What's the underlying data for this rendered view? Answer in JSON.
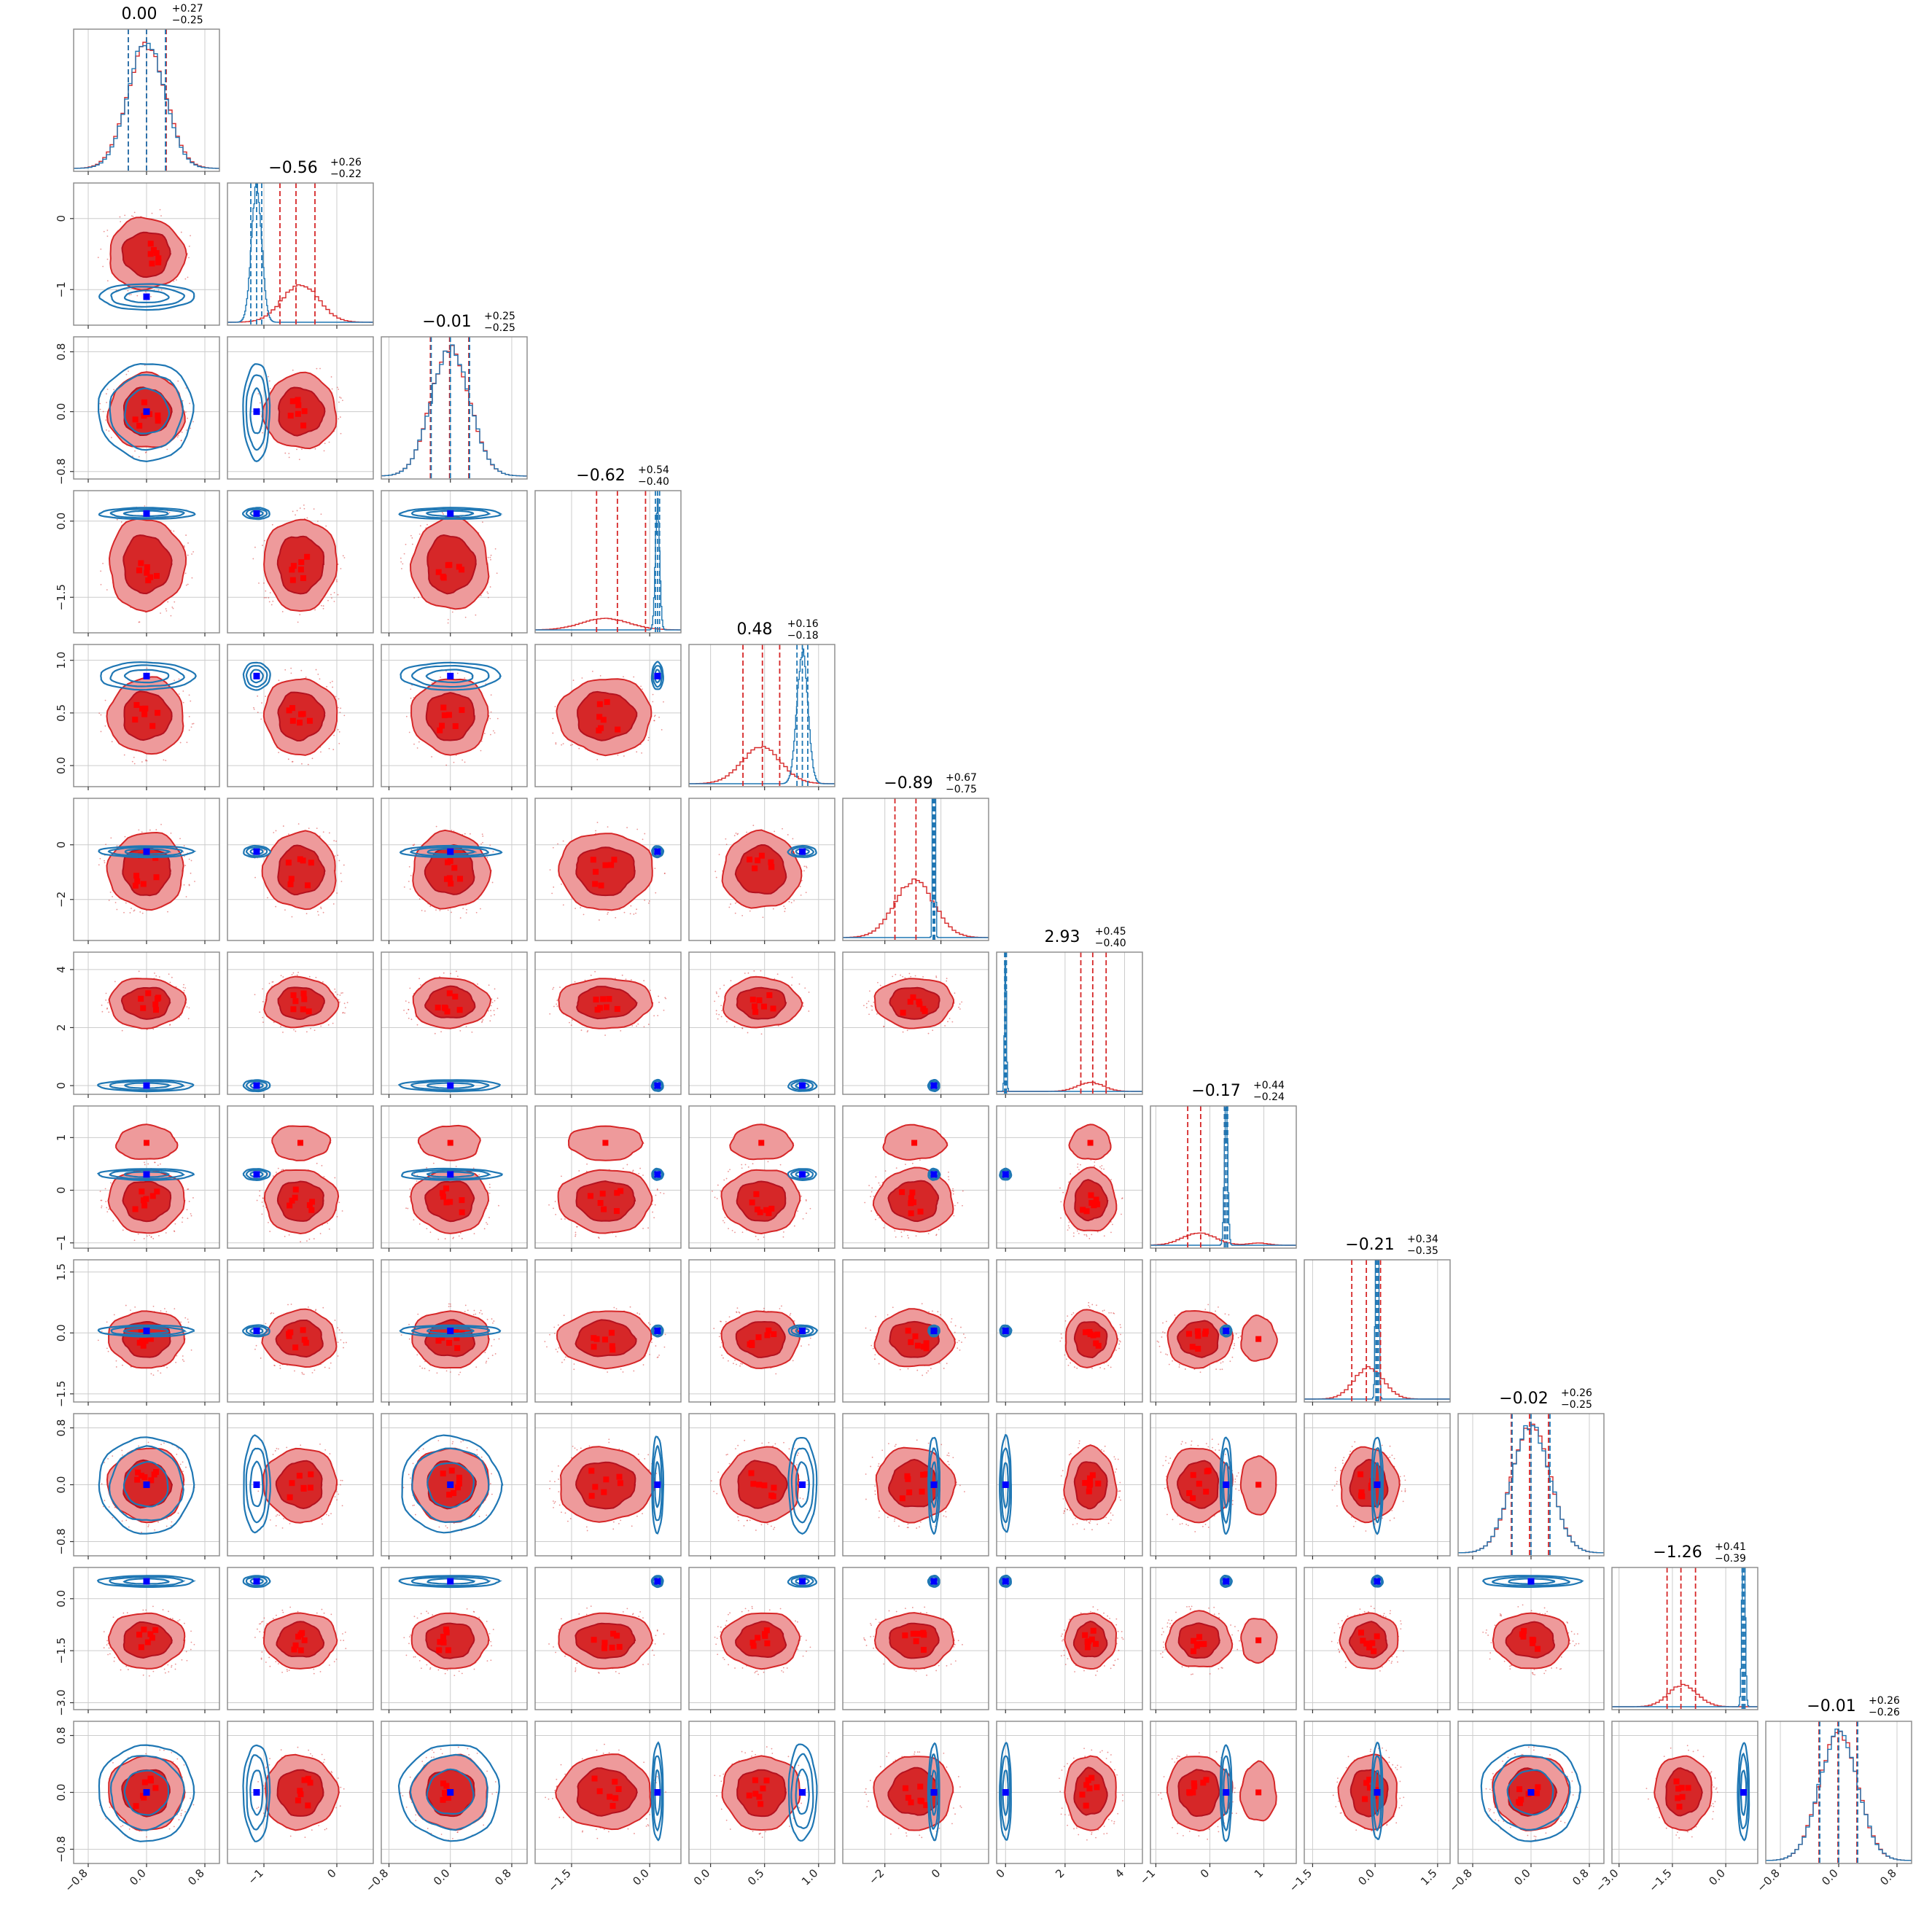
{
  "chart_data": {
    "type": "corner",
    "n_params": 12,
    "grid": true,
    "colors": {
      "red": "#d62728",
      "red_light": "#ee9a9b",
      "red_dark": "#b3121f",
      "blue": "#1f77b4",
      "blue_light": "#8dbbde",
      "marker_red": "#ff0000",
      "marker_blue": "#0000ff",
      "axis": "#888888",
      "grid": "#cccccc"
    },
    "series": [
      {
        "name": "",
        "color": "#d62728",
        "filled": true
      },
      {
        "name": "",
        "color": "#1f77b4",
        "filled": false
      }
    ],
    "titles": [
      {
        "median": "0.00",
        "plus": "+0.27",
        "minus": "−0.25"
      },
      {
        "median": "−0.56",
        "plus": "+0.26",
        "minus": "−0.22"
      },
      {
        "median": "−0.01",
        "plus": "+0.25",
        "minus": "−0.25"
      },
      {
        "median": "−0.62",
        "plus": "+0.54",
        "minus": "−0.40"
      },
      {
        "median": "0.48",
        "plus": "+0.16",
        "minus": "−0.18"
      },
      {
        "median": "−0.89",
        "plus": "+0.67",
        "minus": "−0.75"
      },
      {
        "median": "2.93",
        "plus": "+0.45",
        "minus": "−0.40"
      },
      {
        "median": "−0.17",
        "plus": "+0.44",
        "minus": "−0.24"
      },
      {
        "median": "−0.21",
        "plus": "+0.34",
        "minus": "−0.35"
      },
      {
        "median": "−0.02",
        "plus": "+0.26",
        "minus": "−0.25"
      },
      {
        "median": "−1.26",
        "plus": "+0.41",
        "minus": "−0.39"
      },
      {
        "median": "−0.01",
        "plus": "+0.26",
        "minus": "−0.26"
      }
    ],
    "axes": [
      {
        "lim": [
          -1.0,
          1.0
        ],
        "ticks": [
          -0.8,
          0.0,
          0.8
        ],
        "tick_labels": [
          "−0.8",
          "0.0",
          "0.8"
        ]
      },
      {
        "lim": [
          -1.5,
          0.5
        ],
        "ticks": [
          -1,
          0
        ],
        "tick_labels": [
          "−1",
          "0"
        ]
      },
      {
        "lim": [
          -0.9,
          1.0
        ],
        "ticks": [
          -0.8,
          0.0,
          0.8
        ],
        "tick_labels": [
          "−0.8",
          "0.0",
          "0.8"
        ]
      },
      {
        "lim": [
          -2.2,
          0.6
        ],
        "ticks": [
          -1.5,
          0.0
        ],
        "tick_labels": [
          "−1.5",
          "0.0"
        ]
      },
      {
        "lim": [
          -0.2,
          1.15
        ],
        "ticks": [
          0.0,
          0.5,
          1.0
        ],
        "tick_labels": [
          "0.0",
          "0.5",
          "1.0"
        ]
      },
      {
        "lim": [
          -3.5,
          1.7
        ],
        "ticks": [
          -2,
          0
        ],
        "tick_labels": [
          "−2",
          "0"
        ]
      },
      {
        "lim": [
          -0.3,
          4.6
        ],
        "ticks": [
          0,
          2,
          4
        ],
        "tick_labels": [
          "0",
          "2",
          "4"
        ]
      },
      {
        "lim": [
          -1.1,
          1.6
        ],
        "ticks": [
          -1,
          0,
          1
        ],
        "tick_labels": [
          "−1",
          "0",
          "1"
        ]
      },
      {
        "lim": [
          -1.7,
          1.8
        ],
        "ticks": [
          -1.5,
          0.0,
          1.5
        ],
        "tick_labels": [
          "−1.5",
          "0.0",
          "1.5"
        ]
      },
      {
        "lim": [
          -1.0,
          1.0
        ],
        "ticks": [
          -0.8,
          0.0,
          0.8
        ],
        "tick_labels": [
          "−0.8",
          "0.0",
          "0.8"
        ]
      },
      {
        "lim": [
          -3.2,
          0.9
        ],
        "ticks": [
          -3.0,
          -1.5,
          0.0
        ],
        "tick_labels": [
          "−3.0",
          "−1.5",
          "0.0"
        ]
      },
      {
        "lim": [
          -1.0,
          1.0
        ],
        "ticks": [
          -0.8,
          0.0,
          0.8
        ],
        "tick_labels": [
          "−0.8",
          "0.0",
          "0.8"
        ]
      }
    ],
    "red_posterior": {
      "center": [
        0.0,
        -0.5,
        0.0,
        -0.85,
        0.47,
        -0.95,
        2.85,
        -0.2,
        -0.15,
        0.0,
        -1.2,
        0.0
      ],
      "sigma": [
        0.26,
        0.25,
        0.25,
        0.45,
        0.18,
        0.7,
        0.43,
        0.3,
        0.35,
        0.26,
        0.4,
        0.26
      ],
      "secondary_mode": {
        "param": 7,
        "center": 0.9,
        "weight": 0.15
      }
    },
    "blue_posterior": {
      "center": [
        0.0,
        -1.1,
        0.0,
        0.15,
        0.85,
        -0.25,
        0.0,
        0.3,
        0.05,
        0.0,
        0.5,
        0.0
      ],
      "sigma": [
        0.25,
        0.07,
        0.25,
        0.04,
        0.05,
        0.03,
        0.03,
        0.03,
        0.03,
        0.26,
        0.04,
        0.26
      ]
    },
    "red_quantile_lines": [
      [
        -0.25,
        0.0,
        0.27
      ],
      [
        -0.78,
        -0.56,
        -0.3
      ],
      [
        -0.26,
        -0.01,
        0.24
      ],
      [
        -1.02,
        -0.62,
        -0.08
      ],
      [
        0.3,
        0.48,
        0.64
      ],
      [
        -1.64,
        -0.89,
        -0.22
      ],
      [
        2.53,
        2.93,
        3.38
      ],
      [
        -0.41,
        -0.17,
        0.27
      ],
      [
        -0.56,
        -0.21,
        0.13
      ],
      [
        -0.27,
        -0.02,
        0.24
      ],
      [
        -1.65,
        -1.26,
        -0.85
      ],
      [
        -0.27,
        -0.01,
        0.25
      ]
    ],
    "blue_quantile_lines": [
      [
        -0.25,
        0.0,
        0.26
      ],
      [
        -1.18,
        -1.1,
        -1.03
      ],
      [
        -0.25,
        0.0,
        0.25
      ],
      [
        0.11,
        0.15,
        0.19
      ],
      [
        0.8,
        0.85,
        0.9
      ],
      [
        -0.28,
        -0.25,
        -0.22
      ],
      [
        -0.03,
        0.0,
        0.03
      ],
      [
        0.27,
        0.3,
        0.33
      ],
      [
        0.02,
        0.05,
        0.08
      ],
      [
        -0.26,
        0.0,
        0.26
      ],
      [
        0.46,
        0.5,
        0.54
      ],
      [
        -0.26,
        0.0,
        0.26
      ]
    ]
  }
}
